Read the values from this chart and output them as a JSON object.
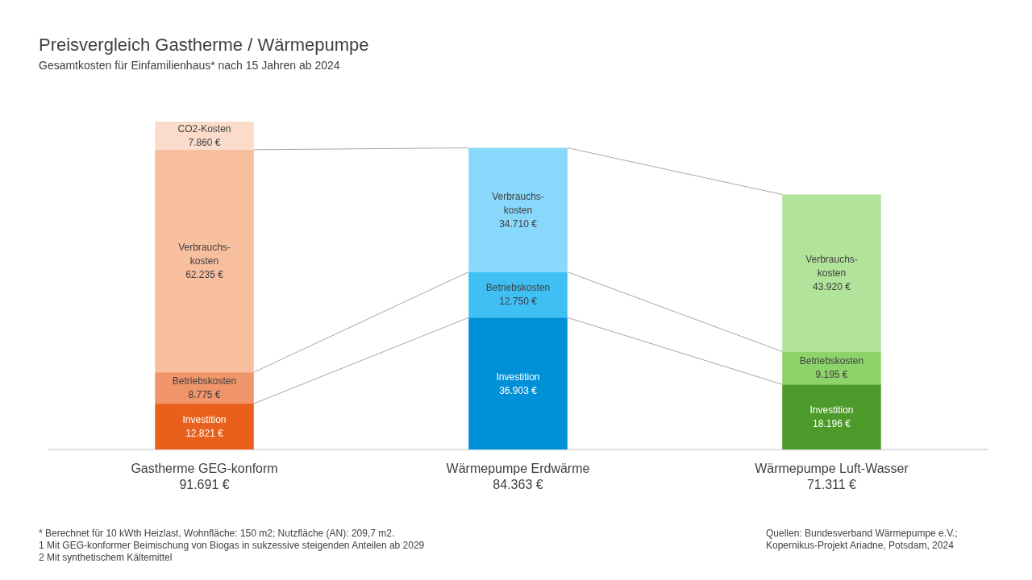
{
  "chart_data": {
    "type": "bar",
    "title": "Preisvergleich Gastherme / Wärmepumpe",
    "subtitle": "Gesamtkosten für Einfamilienhaus* nach 15 Jahren ab 2024",
    "stacked": true,
    "categories": [
      "Gastherme GEG-konform",
      "Wärmepumpe Erdwärme",
      "Wärmepumpe Luft-Wasser"
    ],
    "series": [
      {
        "name": "Investition",
        "colors": [
          "#e8601c",
          "#0090d8",
          "#4c9a2a"
        ],
        "values": [
          12821,
          36903,
          18196
        ],
        "value_labels": [
          "12.821 €",
          "36.903 €",
          "18.196 €"
        ]
      },
      {
        "name": "Betriebskosten",
        "colors": [
          "#f0956a",
          "#3ec0f5",
          "#8cd46a"
        ],
        "values": [
          8775,
          12750,
          9195
        ],
        "value_labels": [
          "8.775 €",
          "12.750 €",
          "9.195 €"
        ]
      },
      {
        "name": "Verbrauchs-kosten",
        "colors": [
          "#f8bf9f",
          "#88d8fc",
          "#b2e39b"
        ],
        "values": [
          62235,
          34710,
          43920
        ],
        "value_labels": [
          "62.235 €",
          "34.710 €",
          "43.920 €"
        ]
      },
      {
        "name": "CO2-Kosten",
        "colors": [
          "#fbdccb",
          null,
          null
        ],
        "values": [
          7860,
          null,
          null
        ],
        "value_labels": [
          "7.860 €",
          null,
          null
        ]
      }
    ],
    "totals": [
      "91.691 €",
      "84.363 €",
      "71.311 €"
    ],
    "annotations": [
      "* Berechnet  für 10 kWth Heizlast, Wohnfläche: 150 m2; Nutzfläche (AN): 209,7 m2.",
      "1 Mit GEG-konformer Beimischung von Biogas in sukzessive steigenden Anteilen ab 2029",
      "2 Mit synthetischem Kältemittel",
      "Quellen: Bundesverband Wärmepumpe e.V.;",
      "Kopernikus-Projekt Ariadne, Potsdam, 2024"
    ]
  }
}
